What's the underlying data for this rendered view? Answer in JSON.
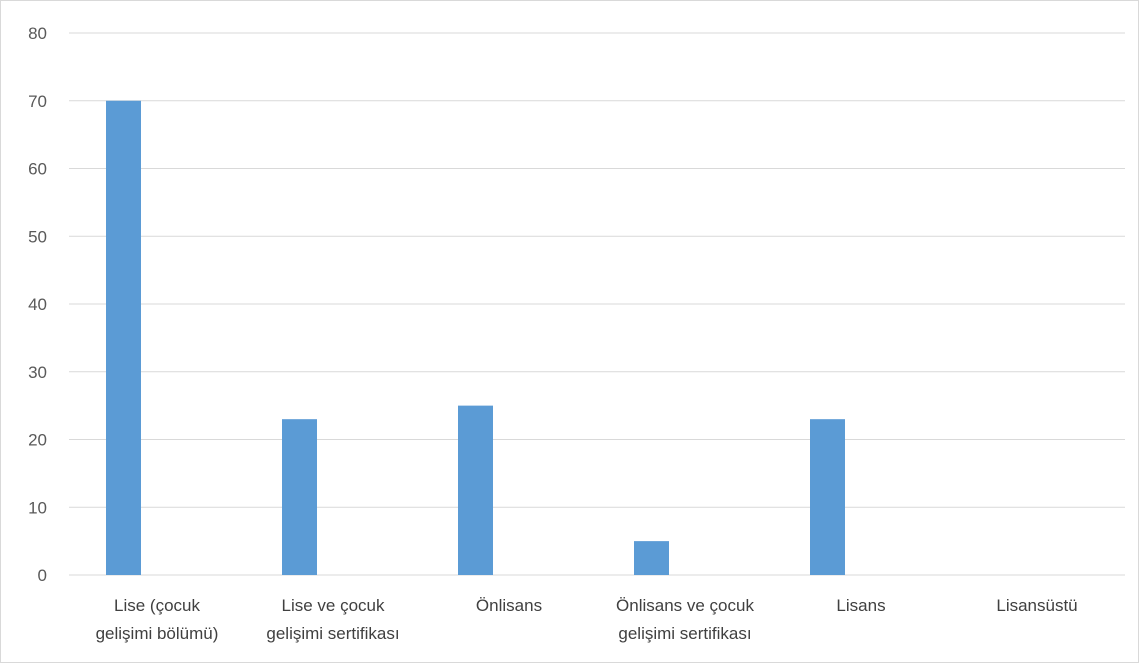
{
  "chart_data": {
    "type": "bar",
    "categories": [
      [
        "Lise (çocuk",
        "gelişimi bölümü)"
      ],
      [
        "Lise ve çocuk",
        "gelişimi sertifikası"
      ],
      [
        "Önlisans"
      ],
      [
        "Önlisans ve çocuk",
        "gelişimi sertifikası"
      ],
      [
        "Lisans"
      ],
      [
        "Lisansüstü"
      ]
    ],
    "values": [
      70,
      23,
      25,
      5,
      23,
      0
    ],
    "ylim": [
      0,
      80
    ],
    "yticks": [
      "0",
      "10",
      "20",
      "30",
      "40",
      "50",
      "60",
      "70",
      "80"
    ],
    "grid": true,
    "bar_color": "#5b9bd5",
    "grid_color": "#d9d9d9"
  }
}
